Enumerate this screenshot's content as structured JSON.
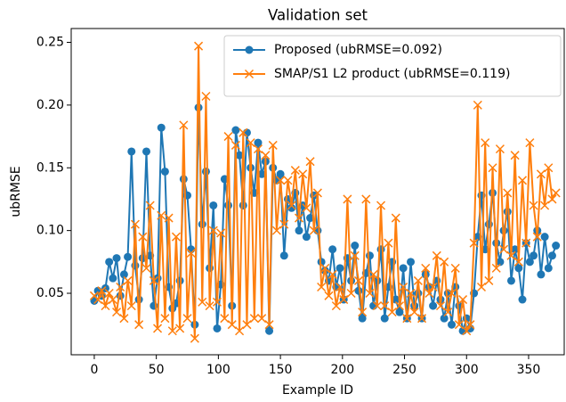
{
  "chart_data": {
    "type": "line",
    "title": "Validation set",
    "xlabel": "Example ID",
    "ylabel": "ubRMSE",
    "legend": "upper right",
    "xlim": [
      -18.6,
      378.7
    ],
    "ylim": [
      0.001,
      0.261
    ],
    "xticks": [
      0,
      50,
      100,
      150,
      200,
      250,
      300,
      350
    ],
    "yticks": [
      0.05,
      {
        "value": 0.1,
        "label": "0.10"
      },
      0.15,
      {
        "value": 0.2,
        "label": "0.20"
      },
      0.25
    ],
    "x": [
      0,
      3,
      6,
      9,
      12,
      15,
      18,
      21,
      24,
      27,
      30,
      33,
      36,
      39,
      42,
      45,
      48,
      51,
      54,
      57,
      60,
      63,
      66,
      69,
      72,
      75,
      78,
      81,
      84,
      87,
      90,
      93,
      96,
      99,
      102,
      105,
      108,
      111,
      114,
      117,
      120,
      123,
      126,
      129,
      132,
      135,
      138,
      141,
      144,
      147,
      150,
      153,
      156,
      159,
      162,
      165,
      168,
      171,
      174,
      177,
      180,
      183,
      186,
      189,
      192,
      195,
      198,
      201,
      204,
      207,
      210,
      213,
      216,
      219,
      222,
      225,
      228,
      231,
      234,
      237,
      240,
      243,
      246,
      249,
      252,
      255,
      258,
      261,
      264,
      267,
      270,
      273,
      276,
      279,
      282,
      285,
      288,
      291,
      294,
      297,
      300,
      303,
      306,
      309,
      312,
      315,
      318,
      321,
      324,
      327,
      330,
      333,
      336,
      339,
      342,
      345,
      348,
      351,
      354,
      357,
      360,
      363,
      366,
      369,
      372
    ],
    "series": [
      {
        "name": "Proposed (ubRMSE=0.092)",
        "color": "#1f77b4",
        "marker": "o",
        "values": [
          0.044,
          0.052,
          0.048,
          0.054,
          0.075,
          0.062,
          0.078,
          0.048,
          0.065,
          0.079,
          0.163,
          0.072,
          0.045,
          0.078,
          0.163,
          0.08,
          0.04,
          0.062,
          0.182,
          0.147,
          0.055,
          0.038,
          0.042,
          0.06,
          0.141,
          0.128,
          0.085,
          0.025,
          0.198,
          0.105,
          0.147,
          0.07,
          0.12,
          0.022,
          0.057,
          0.141,
          0.12,
          0.04,
          0.18,
          0.16,
          0.12,
          0.178,
          0.15,
          0.13,
          0.17,
          0.145,
          0.155,
          0.02,
          0.15,
          0.14,
          0.145,
          0.08,
          0.125,
          0.118,
          0.13,
          0.1,
          0.12,
          0.095,
          0.11,
          0.128,
          0.1,
          0.075,
          0.068,
          0.06,
          0.085,
          0.055,
          0.07,
          0.045,
          0.078,
          0.06,
          0.088,
          0.052,
          0.03,
          0.066,
          0.08,
          0.04,
          0.06,
          0.085,
          0.03,
          0.055,
          0.075,
          0.045,
          0.035,
          0.07,
          0.03,
          0.075,
          0.04,
          0.05,
          0.03,
          0.065,
          0.055,
          0.04,
          0.06,
          0.045,
          0.03,
          0.05,
          0.025,
          0.055,
          0.04,
          0.02,
          0.03,
          0.022,
          0.05,
          0.095,
          0.128,
          0.085,
          0.105,
          0.13,
          0.09,
          0.075,
          0.1,
          0.115,
          0.06,
          0.085,
          0.07,
          0.045,
          0.09,
          0.075,
          0.08,
          0.1,
          0.065,
          0.095,
          0.07,
          0.08,
          0.088
        ]
      },
      {
        "name": "SMAP/S1 L2 product (ubRMSE=0.119)",
        "color": "#ff7f0e",
        "marker": "x",
        "values": [
          0.048,
          0.045,
          0.052,
          0.04,
          0.05,
          0.045,
          0.035,
          0.055,
          0.03,
          0.06,
          0.04,
          0.105,
          0.025,
          0.095,
          0.07,
          0.12,
          0.06,
          0.022,
          0.112,
          0.03,
          0.11,
          0.02,
          0.095,
          0.022,
          0.184,
          0.03,
          0.082,
          0.014,
          0.247,
          0.043,
          0.207,
          0.04,
          0.1,
          0.043,
          0.098,
          0.03,
          0.175,
          0.025,
          0.168,
          0.02,
          0.178,
          0.025,
          0.17,
          0.03,
          0.165,
          0.03,
          0.16,
          0.025,
          0.168,
          0.1,
          0.14,
          0.105,
          0.14,
          0.12,
          0.148,
          0.11,
          0.145,
          0.118,
          0.155,
          0.1,
          0.13,
          0.055,
          0.07,
          0.048,
          0.065,
          0.04,
          0.055,
          0.045,
          0.125,
          0.05,
          0.08,
          0.06,
          0.035,
          0.125,
          0.05,
          0.065,
          0.04,
          0.12,
          0.04,
          0.09,
          0.035,
          0.11,
          0.04,
          0.055,
          0.03,
          0.05,
          0.035,
          0.06,
          0.03,
          0.07,
          0.05,
          0.055,
          0.08,
          0.04,
          0.075,
          0.035,
          0.05,
          0.07,
          0.025,
          0.045,
          0.02,
          0.025,
          0.09,
          0.2,
          0.055,
          0.17,
          0.06,
          0.15,
          0.07,
          0.165,
          0.085,
          0.13,
          0.08,
          0.16,
          0.075,
          0.14,
          0.09,
          0.17,
          0.12,
          0.095,
          0.145,
          0.12,
          0.15,
          0.125,
          0.13
        ]
      }
    ]
  }
}
